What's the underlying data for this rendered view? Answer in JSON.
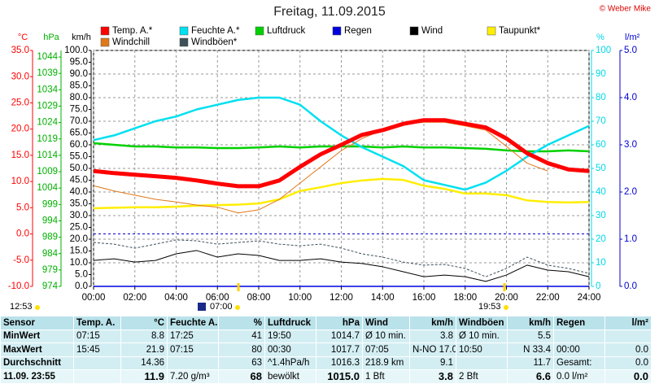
{
  "chart_data": {
    "type": "line",
    "title": "Freitag, 11.09.2015",
    "credit": "© Weber Mike",
    "xlim": [
      0,
      24
    ],
    "xticks": [
      {
        "value": 0,
        "label": "00:00"
      },
      {
        "value": 2,
        "label": "02:00"
      },
      {
        "value": 4,
        "label": "04:00"
      },
      {
        "value": 6,
        "label": "06:00"
      },
      {
        "value": 8,
        "label": "08:00"
      },
      {
        "value": 10,
        "label": "10:00"
      },
      {
        "value": 12,
        "label": "12:00"
      },
      {
        "value": 14,
        "label": "14:00"
      },
      {
        "value": 16,
        "label": "16:00"
      },
      {
        "value": 18,
        "label": "18:00"
      },
      {
        "value": 20,
        "label": "20:00"
      },
      {
        "value": 22,
        "label": "22:00"
      },
      {
        "value": 24,
        "label": "24:00"
      }
    ],
    "grid": true,
    "axes": [
      {
        "label": "°C",
        "color": "#ff0000",
        "lim": [
          -10,
          35
        ],
        "ticks": [
          {
            "value": 35,
            "label": "35.0"
          },
          {
            "value": 30,
            "label": "30.0"
          },
          {
            "value": 25,
            "label": "25.0"
          },
          {
            "value": 20,
            "label": "20.0"
          },
          {
            "value": 15,
            "label": "15.0"
          },
          {
            "value": 10,
            "label": "10.0"
          },
          {
            "value": 5,
            "label": "5.0"
          },
          {
            "value": 0,
            "label": "0.0"
          },
          {
            "value": -5,
            "label": "-5.0"
          },
          {
            "value": -10,
            "label": "-10.0"
          }
        ]
      },
      {
        "label": "hPa",
        "color": "#00b000",
        "lim": [
          974,
          1046
        ],
        "ticks": [
          1044,
          1039,
          1034,
          1029,
          1024,
          1019,
          1014,
          1009,
          1004,
          999,
          994,
          989,
          984,
          979,
          974
        ]
      },
      {
        "label": "km/h",
        "color": "#000000",
        "lim": [
          0,
          100
        ],
        "ticks": [
          {
            "value": 100,
            "label": "100.0"
          },
          {
            "value": 95,
            "label": "95.0"
          },
          {
            "value": 90,
            "label": "90.0"
          },
          {
            "value": 85,
            "label": "85.0"
          },
          {
            "value": 80,
            "label": "80.0"
          },
          {
            "value": 75,
            "label": "75.0"
          },
          {
            "value": 70,
            "label": "70.0"
          },
          {
            "value": 65,
            "label": "65.0"
          },
          {
            "value": 60,
            "label": "60.0"
          },
          {
            "value": 55,
            "label": "55.0"
          },
          {
            "value": 50,
            "label": "50.0"
          },
          {
            "value": 45,
            "label": "45.0"
          },
          {
            "value": 40,
            "label": "40.0"
          },
          {
            "value": 35,
            "label": "35.0"
          },
          {
            "value": 30,
            "label": "30.0"
          },
          {
            "value": 25,
            "label": "25.0"
          },
          {
            "value": 20,
            "label": "20.0"
          },
          {
            "value": 15,
            "label": "15.0"
          },
          {
            "value": 10,
            "label": "10.0"
          },
          {
            "value": 5,
            "label": "5.0"
          },
          {
            "value": 0,
            "label": "0.0"
          }
        ]
      },
      {
        "label": "%",
        "color": "#00d8e8",
        "lim": [
          0,
          100
        ],
        "ticks": [
          100,
          90,
          80,
          70,
          60,
          50,
          40,
          30,
          20,
          10,
          0
        ]
      },
      {
        "label": "l/m²",
        "color": "#0000cc",
        "lim": [
          0,
          5
        ],
        "ticks": [
          {
            "value": 5,
            "label": "5.0"
          },
          {
            "value": 4,
            "label": "4.0"
          },
          {
            "value": 3,
            "label": "3.0"
          },
          {
            "value": 2,
            "label": "2.0"
          },
          {
            "value": 1,
            "label": "1.0"
          },
          {
            "value": 0,
            "label": "0.0"
          }
        ]
      }
    ],
    "x": [
      0,
      1,
      2,
      3,
      4,
      5,
      6,
      7,
      8,
      9,
      10,
      11,
      12,
      13,
      14,
      15,
      16,
      17,
      18,
      19,
      20,
      21,
      22,
      23,
      24
    ],
    "series": [
      {
        "name": "Temp. A.*",
        "color": "#ff0000",
        "axis": 0,
        "values": [
          12.0,
          11.6,
          11.3,
          11.0,
          10.7,
          10.2,
          9.6,
          9.1,
          9.1,
          10.2,
          12.8,
          15.2,
          17.0,
          18.9,
          19.8,
          21.0,
          21.7,
          21.7,
          21.0,
          20.3,
          18.2,
          15.4,
          13.5,
          12.3,
          12.0
        ]
      },
      {
        "name": "Windchill",
        "color": "#e07818",
        "axis": 0,
        "values": [
          9.2,
          8.2,
          7.4,
          6.6,
          6.1,
          5.5,
          5.1,
          4.0,
          4.6,
          6.6,
          9.7,
          12.8,
          15.9,
          18.2,
          19.8,
          20.9,
          21.3,
          21.3,
          20.6,
          19.8,
          16.7,
          13.5,
          12.0,
          null,
          null
        ]
      },
      {
        "name": "Feuchte A.*",
        "color": "#00e0f0",
        "axis": 3,
        "values": [
          62,
          64,
          67,
          70,
          72,
          75,
          77,
          79,
          80,
          80,
          77,
          70,
          64,
          59,
          55,
          51,
          45,
          43,
          41,
          44,
          49,
          55,
          60,
          64,
          68
        ]
      },
      {
        "name": "Windböen*",
        "color": "#3c5058",
        "axis": 2,
        "values": [
          18.6,
          17.9,
          16.2,
          17.9,
          19.7,
          19.3,
          17.9,
          18.6,
          19.3,
          17.9,
          17.2,
          17.9,
          16.2,
          13.8,
          12.4,
          10.3,
          9.0,
          9.3,
          7.6,
          4.1,
          7.6,
          12.4,
          9.0,
          7.6,
          5.5
        ]
      },
      {
        "name": "Luftdruck",
        "color": "#00d000",
        "axis": 1,
        "values": [
          1017.7,
          1017.2,
          1016.7,
          1016.7,
          1016.4,
          1016.4,
          1016.2,
          1016.2,
          1016.4,
          1016.7,
          1016.4,
          1016.7,
          1016.7,
          1016.7,
          1016.4,
          1016.7,
          1016.4,
          1016.4,
          1016.2,
          1016.0,
          1015.5,
          1015.2,
          1015.2,
          1015.5,
          1015.2
        ]
      },
      {
        "name": "Regen",
        "color": "#0000dd",
        "axis": 4,
        "values": [
          0,
          0,
          0,
          0,
          0,
          0,
          0,
          0,
          0,
          0,
          0,
          0,
          0,
          0,
          0,
          0,
          0,
          0,
          0,
          0,
          0,
          0,
          0,
          0,
          0
        ]
      },
      {
        "name": "Wind",
        "color": "#000000",
        "axis": 2,
        "values": [
          11.0,
          11.7,
          10.3,
          11.0,
          13.8,
          15.2,
          12.4,
          13.8,
          13.1,
          11.0,
          11.0,
          11.7,
          10.3,
          9.7,
          8.3,
          6.2,
          4.1,
          4.8,
          4.1,
          2.1,
          4.8,
          9.0,
          6.9,
          6.2,
          4.1
        ]
      },
      {
        "name": "Taupunkt*",
        "color": "#ffee00",
        "axis": 0,
        "values": [
          4.9,
          5.0,
          5.1,
          5.1,
          5.2,
          5.4,
          5.5,
          5.6,
          5.8,
          6.6,
          8.2,
          8.9,
          9.7,
          10.2,
          10.5,
          10.3,
          9.2,
          8.6,
          7.7,
          7.7,
          7.4,
          6.4,
          6.1,
          6.0,
          6.1
        ]
      }
    ],
    "annotations": [
      "12:53",
      "07:00",
      "19:53"
    ]
  },
  "table": {
    "header": [
      "Sensor",
      "Temp. A.",
      "°C",
      "Feuchte A.",
      "%",
      "Luftdruck",
      "hPa",
      "Wind",
      "km/h",
      "Windböen",
      "km/h",
      "Regen",
      "l/m²"
    ],
    "rows": [
      [
        "MinWert",
        "07:15",
        "8.8",
        "17:25",
        "41",
        "19:50",
        "1014.7",
        "Ø 10 min.",
        "3.8",
        "Ø 10 min.",
        "5.5",
        null,
        null
      ],
      [
        "MaxWert",
        "15:45",
        "21.9",
        "07:15",
        "80",
        "00:30",
        "1017.7",
        "07:05",
        "N-NO 17.0",
        "10:50",
        "N 33.4",
        "00:00",
        "0.0"
      ],
      [
        "Durchschnitt",
        null,
        "14.36",
        null,
        "63",
        "^1.4hPa/h",
        "1016.3",
        "218.9 km",
        "9.1",
        null,
        "11.7",
        "Gesamt:",
        "0.0"
      ],
      [
        "11.09. 23:55",
        null,
        "11.9",
        "7.20 g/m³",
        "68",
        "bewölkt",
        "1015.0",
        "1 Bft",
        "3.8",
        "2 Bft",
        "6.6",
        "0.0 l/m²",
        "0.0"
      ]
    ]
  }
}
